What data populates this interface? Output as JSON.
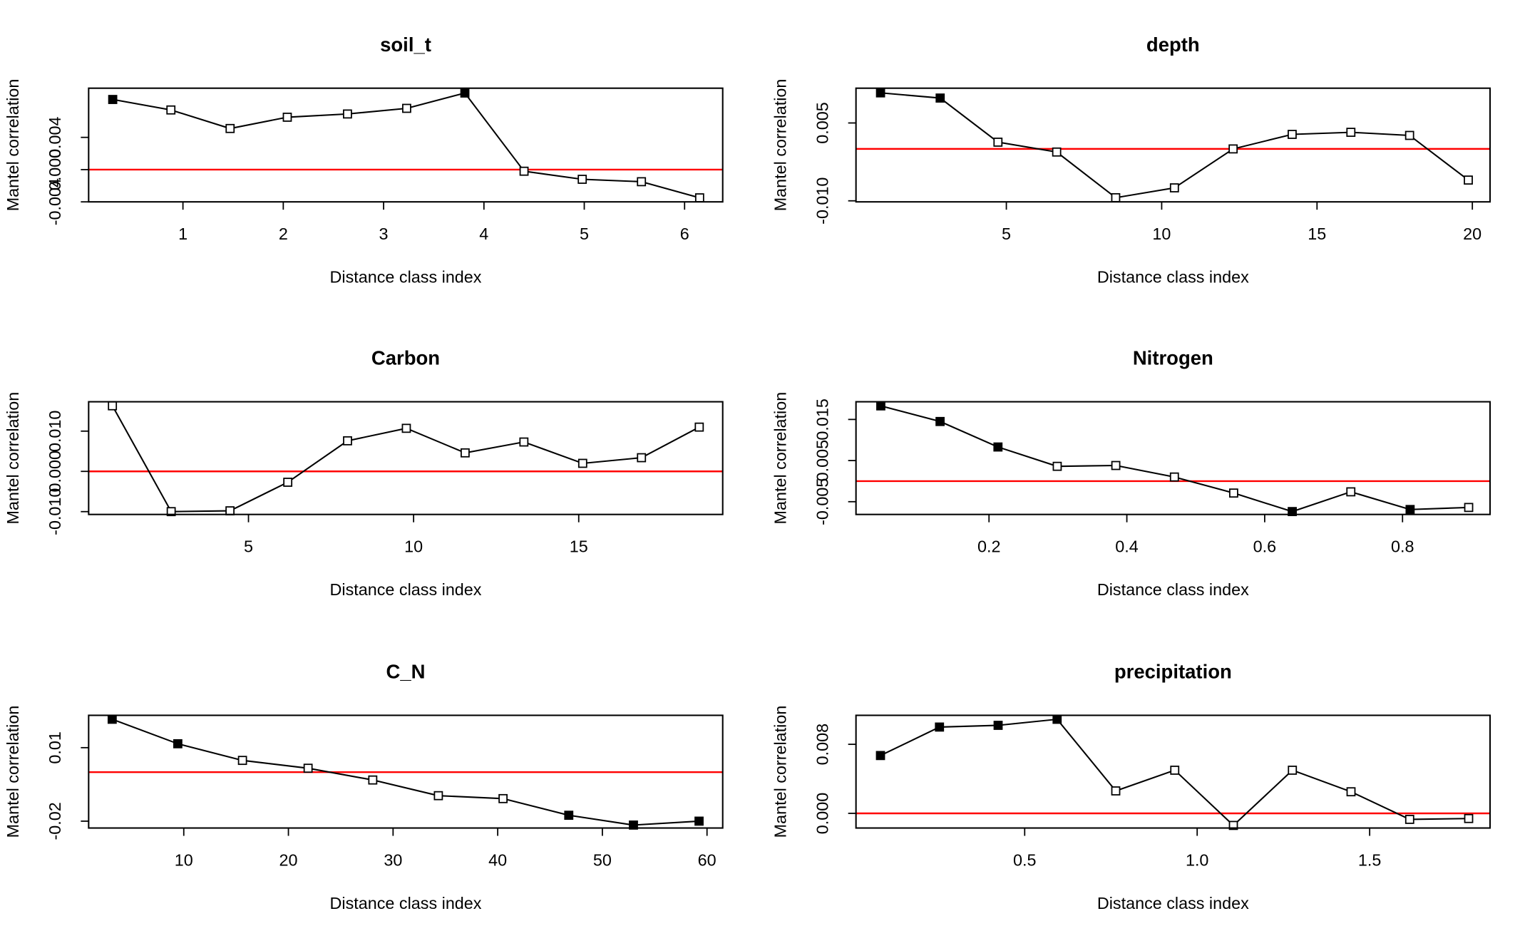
{
  "chart_data": [
    {
      "type": "line",
      "title": "soil_t",
      "xlabel": "Distance class index",
      "ylabel": "Mantel correlation",
      "x": [
        0.3,
        0.88,
        1.47,
        2.04,
        2.64,
        3.23,
        3.81,
        4.4,
        4.98,
        5.57,
        6.15
      ],
      "values": [
        0.0087,
        0.0074,
        0.0051,
        0.0065,
        0.0069,
        0.0076,
        0.0095,
        -0.0002,
        -0.0012,
        -0.0015,
        -0.0035
      ],
      "filled": [
        true,
        false,
        false,
        false,
        false,
        false,
        true,
        false,
        false,
        false,
        false
      ],
      "color": "#000000",
      "hline": 0,
      "hline_color": "#ff0000",
      "xlim": [
        0.06,
        6.38
      ],
      "ylim": [
        -0.004,
        0.0101
      ],
      "xticks": [
        1,
        2,
        3,
        4,
        5,
        6
      ],
      "yticks": [
        -0.004,
        {
          "value": 0,
          "label": "0.000"
        },
        0.004
      ]
    },
    {
      "type": "line",
      "title": "depth",
      "xlabel": "Distance class index",
      "ylabel": "Mantel correlation",
      "x": [
        0.95,
        2.87,
        4.73,
        6.62,
        8.52,
        10.41,
        12.3,
        14.2,
        16.09,
        17.98,
        19.87
      ],
      "values": [
        0.0108,
        0.0098,
        0.0013,
        -0.0006,
        -0.0094,
        -0.0075,
        0.0,
        0.0028,
        0.0032,
        0.0026,
        -0.006
      ],
      "filled": [
        true,
        true,
        false,
        false,
        false,
        false,
        false,
        false,
        false,
        false,
        false
      ],
      "color": "#000000",
      "hline": 0,
      "hline_color": "#ff0000",
      "xlim": [
        0.16,
        20.57
      ],
      "ylim": [
        -0.0102,
        0.0117
      ],
      "xticks": [
        5,
        10,
        15,
        20
      ],
      "yticks": [
        {
          "value": -0.01,
          "label": "-0.010"
        },
        0.005
      ]
    },
    {
      "type": "line",
      "title": "Carbon",
      "xlabel": "Distance class index",
      "ylabel": "Mantel correlation",
      "x": [
        0.88,
        2.66,
        4.44,
        6.19,
        8.0,
        9.78,
        11.56,
        13.34,
        15.12,
        16.9,
        18.65
      ],
      "values": [
        0.0163,
        -0.01,
        -0.0098,
        -0.0027,
        0.0076,
        0.0107,
        0.0046,
        0.0073,
        0.002,
        0.0034,
        0.011
      ],
      "filled": [
        false,
        false,
        false,
        false,
        false,
        false,
        false,
        false,
        false,
        false,
        false
      ],
      "color": "#000000",
      "hline": 0,
      "hline_color": "#ff0000",
      "xlim": [
        0.16,
        19.36
      ],
      "ylim": [
        -0.0107,
        0.0173
      ],
      "xticks": [
        5,
        10,
        15
      ],
      "yticks": [
        {
          "value": -0.01,
          "label": "-0.010"
        },
        {
          "value": 0,
          "label": "0.000"
        },
        {
          "value": 0.01,
          "label": "0.010"
        }
      ]
    },
    {
      "type": "line",
      "title": "Nitrogen",
      "xlabel": "Distance class index",
      "ylabel": "Mantel correlation",
      "x": [
        0.043,
        0.129,
        0.213,
        0.299,
        0.384,
        0.469,
        0.555,
        0.64,
        0.725,
        0.811,
        0.896
      ],
      "values": [
        0.0183,
        0.0145,
        0.0083,
        0.0036,
        0.0038,
        0.001,
        -0.0029,
        -0.0074,
        -0.0026,
        -0.0069,
        -0.0064
      ],
      "filled": [
        true,
        true,
        true,
        false,
        false,
        false,
        false,
        true,
        false,
        true,
        false
      ],
      "color": "#000000",
      "hline": 0,
      "hline_color": "#ff0000",
      "xlim": [
        0.007,
        0.927
      ],
      "ylim": [
        -0.0081,
        0.0193
      ],
      "xticks": [
        0.2,
        0.4,
        0.6,
        0.8
      ],
      "yticks": [
        -0.005,
        0.005,
        0.015
      ]
    },
    {
      "type": "line",
      "title": "C_N",
      "xlabel": "Distance class index",
      "ylabel": "Mantel correlation",
      "x": [
        3.16,
        9.43,
        15.61,
        21.88,
        28.06,
        34.33,
        40.51,
        46.79,
        52.97,
        59.24
      ],
      "values": [
        0.0216,
        0.0116,
        0.0048,
        0.0016,
        -0.0032,
        -0.0096,
        -0.0108,
        -0.0176,
        -0.0216,
        -0.02
      ],
      "filled": [
        true,
        true,
        false,
        false,
        false,
        false,
        false,
        true,
        true,
        true
      ],
      "color": "#000000",
      "hline": 0,
      "hline_color": "#ff0000",
      "xlim": [
        0.91,
        61.5
      ],
      "ylim": [
        -0.0228,
        0.0232
      ],
      "xticks": [
        10,
        20,
        30,
        40,
        50,
        60
      ],
      "yticks": [
        -0.02,
        0.01
      ]
    },
    {
      "type": "line",
      "title": "precipitation",
      "xlabel": "Distance class index",
      "ylabel": "Mantel correlation",
      "x": [
        0.082,
        0.253,
        0.423,
        0.594,
        0.764,
        0.935,
        1.105,
        1.276,
        1.446,
        1.616,
        1.787
      ],
      "values": [
        0.0067,
        0.01,
        0.0102,
        0.0109,
        0.0026,
        0.005,
        -0.0014,
        0.005,
        0.0025,
        -0.0007,
        -0.0006
      ],
      "filled": [
        true,
        true,
        true,
        true,
        false,
        false,
        false,
        false,
        false,
        false,
        false
      ],
      "color": "#000000",
      "hline": 0,
      "hline_color": "#ff0000",
      "xlim": [
        0.011,
        1.849
      ],
      "ylim": [
        -0.0017,
        0.01136
      ],
      "xticks": [
        0.5,
        {
          "value": 1,
          "label": "1.0"
        },
        1.5
      ],
      "yticks": [
        {
          "value": 0,
          "label": "0.000"
        },
        0.008
      ]
    }
  ]
}
